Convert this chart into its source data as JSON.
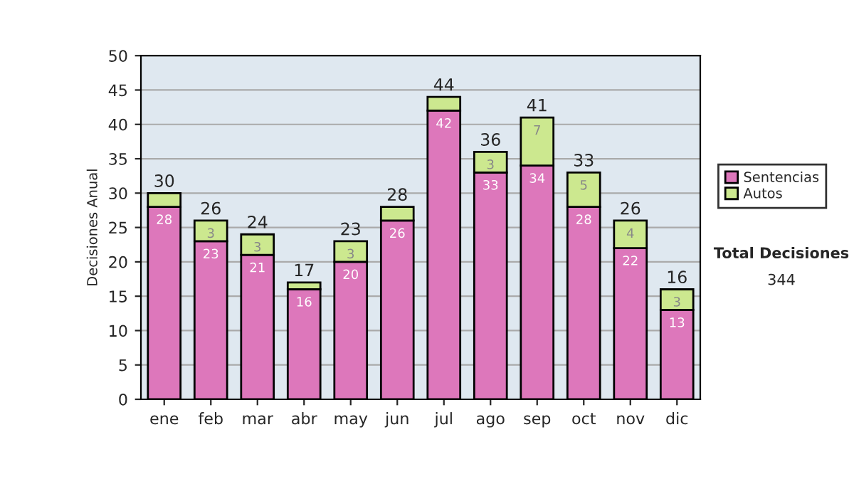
{
  "chart_data": {
    "type": "bar",
    "stacked": true,
    "ylabel": "Decisiones Anual",
    "categories": [
      "ene",
      "feb",
      "mar",
      "abr",
      "may",
      "jun",
      "jul",
      "ago",
      "sep",
      "oct",
      "nov",
      "dic"
    ],
    "series": [
      {
        "name": "Sentencias",
        "color": "#dd77bb",
        "values": [
          28,
          23,
          21,
          16,
          20,
          26,
          42,
          33,
          34,
          28,
          22,
          13
        ],
        "value_labels": [
          "28",
          "23",
          "21",
          "16",
          "20",
          "26",
          "42",
          "33",
          "34",
          "28",
          "22",
          "13"
        ]
      },
      {
        "name": "Autos",
        "color": "#cce88f",
        "values": [
          2,
          3,
          3,
          1,
          3,
          2,
          2,
          3,
          7,
          5,
          4,
          3
        ],
        "value_labels": [
          null,
          "3",
          "3",
          null,
          "3",
          null,
          null,
          "3",
          "7",
          "5",
          "4",
          "3"
        ]
      }
    ],
    "totals": [
      "30",
      "26",
      "24",
      "17",
      "23",
      "28",
      "44",
      "36",
      "41",
      "33",
      "26",
      "16"
    ],
    "ylim": [
      0,
      50
    ],
    "yticks": [
      0,
      5,
      10,
      15,
      20,
      25,
      30,
      35,
      40,
      45,
      50
    ],
    "grid": "y",
    "legend": "right",
    "annotations": [
      "Total Decisiones",
      "344"
    ]
  }
}
